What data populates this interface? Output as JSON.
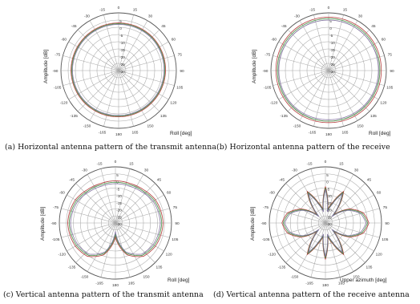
{
  "chart_data": [
    {
      "type": "line",
      "subtype": "polar",
      "caption": "(a) Horizontal antenna pattern of the transmit antenna",
      "ylabel": "Amplitude [dB]",
      "xlabel": "Roll  [deg]",
      "angle_ticks": [
        "0",
        "15",
        "30",
        "45",
        "60",
        "75",
        "90",
        "105",
        "120",
        "135",
        "150",
        "165",
        "180",
        "-165",
        "-150",
        "-135",
        "-120",
        "-105",
        "-90",
        "-75",
        "-60",
        "-45",
        "-30",
        "-15"
      ],
      "radial_ticks": [
        "5",
        "0",
        "-5",
        "-10",
        "-15",
        "-20",
        "-25",
        "-30"
      ],
      "rlim": [
        -30,
        10
      ],
      "grid": true,
      "series": [
        {
          "color": "#b03030",
          "angles": [
            0,
            45,
            90,
            135,
            180,
            225,
            270,
            315,
            360
          ],
          "values": [
            3,
            3,
            2.5,
            2,
            2,
            2.5,
            3,
            3,
            3
          ]
        },
        {
          "color": "#3a8a3a",
          "angles": [
            0,
            45,
            90,
            135,
            180,
            225,
            270,
            315,
            360
          ],
          "values": [
            2.5,
            2.5,
            2,
            1.5,
            1.5,
            2,
            2.5,
            2.5,
            2.5
          ]
        },
        {
          "color": "#7a6a9a",
          "angles": [
            0,
            45,
            90,
            135,
            180,
            225,
            270,
            315,
            360
          ],
          "values": [
            2,
            2,
            1.5,
            1,
            1,
            1.5,
            2,
            2,
            2
          ]
        }
      ]
    },
    {
      "type": "line",
      "subtype": "polar",
      "caption": "(b) Horizontal antenna pattern of the receive",
      "ylabel": "Amplitude [dB]",
      "xlabel": "Roll  [deg]",
      "angle_ticks": [
        "0",
        "15",
        "30",
        "45",
        "60",
        "75",
        "90",
        "105",
        "120",
        "135",
        "150",
        "165",
        "180",
        "-165",
        "-150",
        "-135",
        "-120",
        "-105",
        "-90",
        "-75",
        "-60",
        "-45",
        "-30",
        "-15"
      ],
      "radial_ticks": [
        "5",
        "0",
        "-5",
        "-10",
        "-15",
        "-20",
        "-25",
        "-30"
      ],
      "rlim": [
        -30,
        10
      ],
      "grid": true,
      "series": [
        {
          "color": "#b03030",
          "angles": [
            0,
            45,
            90,
            135,
            180,
            225,
            270,
            315,
            360
          ],
          "values": [
            7,
            7,
            6.5,
            6.5,
            6,
            6.5,
            6.5,
            7,
            7
          ]
        },
        {
          "color": "#3a8a3a",
          "angles": [
            0,
            45,
            90,
            135,
            180,
            225,
            270,
            315,
            360
          ],
          "values": [
            6,
            6,
            5.5,
            5.5,
            5,
            5.5,
            5.5,
            6,
            6
          ]
        },
        {
          "color": "#7a6a9a",
          "angles": [
            0,
            45,
            90,
            135,
            180,
            225,
            270,
            315,
            360
          ],
          "values": [
            5,
            5,
            4.5,
            4.5,
            4,
            4.5,
            4.5,
            5,
            5
          ]
        }
      ]
    },
    {
      "type": "line",
      "subtype": "polar",
      "caption": "(c) Vertical antenna pattern of the transmit antenna",
      "ylabel": "Amplitude [dB]",
      "xlabel": "Roll  [deg]",
      "angle_ticks": [
        "0",
        "15",
        "30",
        "45",
        "60",
        "75",
        "90",
        "105",
        "120",
        "135",
        "150",
        "165",
        "180",
        "-165",
        "-150",
        "-135",
        "-120",
        "-105",
        "-90",
        "-75",
        "-60",
        "-45",
        "-30",
        "-15"
      ],
      "radial_ticks": [
        "5",
        "0",
        "-5",
        "-10",
        "-15",
        "-20",
        "-25",
        "-30"
      ],
      "rlim": [
        -30,
        10
      ],
      "grid": true,
      "series": [
        {
          "color": "#b03030",
          "angles": [
            0,
            20,
            40,
            60,
            90,
            120,
            140,
            160,
            180,
            200,
            220,
            240,
            270,
            300,
            320,
            340,
            360
          ],
          "values": [
            0,
            0,
            1,
            3,
            4,
            3,
            1,
            -6,
            -20,
            -6,
            1,
            3,
            4,
            3,
            1,
            0,
            0
          ]
        },
        {
          "color": "#3a8a3a",
          "angles": [
            0,
            20,
            40,
            60,
            90,
            120,
            140,
            160,
            180,
            200,
            220,
            240,
            270,
            300,
            320,
            340,
            360
          ],
          "values": [
            -1,
            -1,
            0,
            2,
            3,
            2,
            0,
            -7,
            -22,
            -7,
            0,
            2,
            3,
            2,
            0,
            -1,
            -1
          ]
        },
        {
          "color": "#7a6a9a",
          "angles": [
            0,
            20,
            40,
            60,
            90,
            120,
            140,
            160,
            180,
            200,
            220,
            240,
            270,
            300,
            320,
            340,
            360
          ],
          "values": [
            -2,
            -2,
            -1,
            1,
            2,
            1,
            -1,
            -8,
            -24,
            -8,
            -1,
            1,
            2,
            1,
            -1,
            -2,
            -2
          ]
        }
      ]
    },
    {
      "type": "line",
      "subtype": "polar",
      "caption": "(d) Vertical antenna pattern of the receive antenna",
      "ylabel": "Amplitude [dB]",
      "xlabel": "Upper azimuth  [deg]",
      "angle_ticks": [
        "0",
        "15",
        "30",
        "45",
        "60",
        "75",
        "90",
        "105",
        "120",
        "135",
        "150",
        "165",
        "180",
        "-165",
        "-150",
        "-135",
        "-120",
        "-105",
        "-90",
        "-75",
        "-60",
        "-45",
        "-30",
        "-15"
      ],
      "radial_ticks": [
        "5",
        "0",
        "-5",
        "-10",
        "-15",
        "-20",
        "-25",
        "-30"
      ],
      "rlim": [
        -30,
        10
      ],
      "grid": true,
      "series": [
        {
          "color": "#b03030",
          "angles": [
            0,
            10,
            20,
            30,
            45,
            60,
            75,
            90,
            105,
            120,
            135,
            150,
            160,
            170,
            180,
            190,
            200,
            210,
            225,
            240,
            255,
            270,
            285,
            300,
            315,
            330,
            340,
            350,
            360
          ],
          "values": [
            -4,
            -20,
            -14,
            -4,
            -22,
            -10,
            -2,
            1,
            -2,
            -10,
            -22,
            -4,
            -14,
            -20,
            -4,
            -20,
            -14,
            -4,
            -22,
            -10,
            -2,
            1,
            -2,
            -10,
            -22,
            -4,
            -14,
            -20,
            -4
          ]
        },
        {
          "color": "#3a8a3a",
          "angles": [
            0,
            10,
            20,
            30,
            45,
            60,
            75,
            90,
            105,
            120,
            135,
            150,
            160,
            170,
            180,
            190,
            200,
            210,
            225,
            240,
            255,
            270,
            285,
            300,
            315,
            330,
            340,
            350,
            360
          ],
          "values": [
            -5,
            -21,
            -15,
            -5,
            -23,
            -11,
            -3,
            0,
            -3,
            -11,
            -23,
            -5,
            -15,
            -21,
            -5,
            -21,
            -15,
            -5,
            -23,
            -11,
            -3,
            0,
            -3,
            -11,
            -23,
            -5,
            -15,
            -21,
            -5
          ]
        },
        {
          "color": "#7a6a9a",
          "angles": [
            0,
            10,
            20,
            30,
            45,
            60,
            75,
            90,
            105,
            120,
            135,
            150,
            160,
            170,
            180,
            190,
            200,
            210,
            225,
            240,
            255,
            270,
            285,
            300,
            315,
            330,
            340,
            350,
            360
          ],
          "values": [
            -6,
            -22,
            -16,
            -6,
            -24,
            -12,
            -4,
            -1,
            -4,
            -12,
            -24,
            -6,
            -16,
            -22,
            -6,
            -22,
            -16,
            -6,
            -24,
            -12,
            -4,
            -1,
            -4,
            -12,
            -24,
            -6,
            -16,
            -22,
            -6
          ]
        }
      ]
    }
  ]
}
